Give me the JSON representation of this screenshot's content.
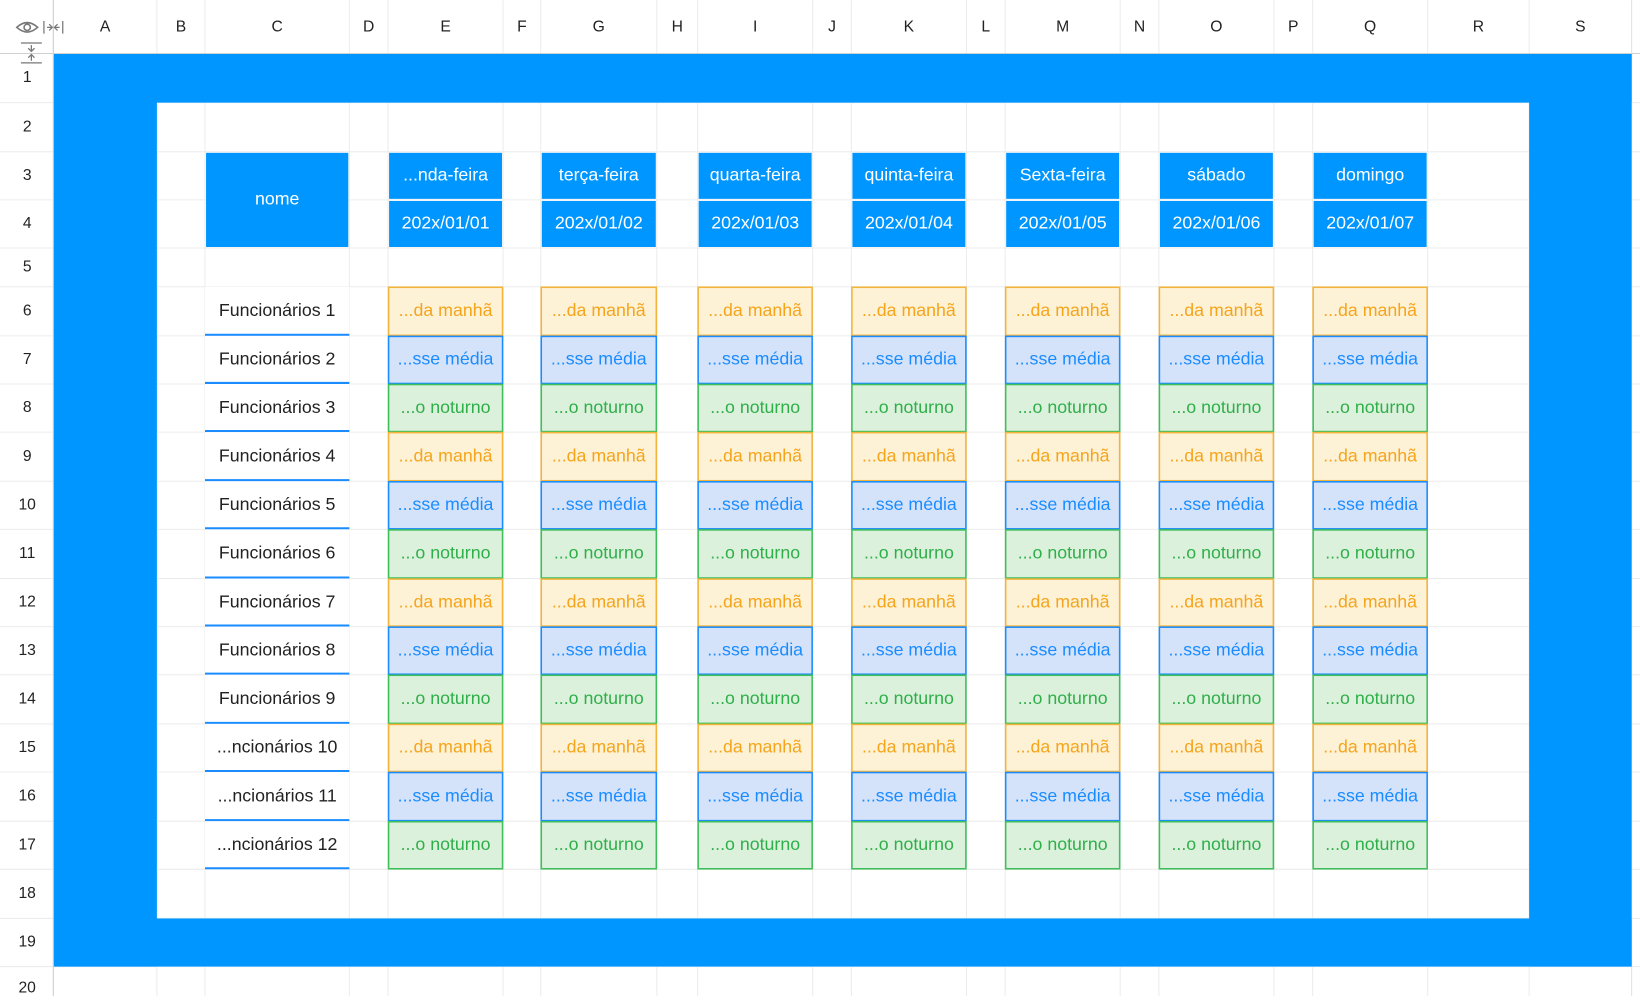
{
  "columns": [
    "A",
    "B",
    "C",
    "D",
    "E",
    "F",
    "G",
    "H",
    "I",
    "J",
    "K",
    "L",
    "M",
    "N",
    "O",
    "P",
    "Q",
    "R",
    "S"
  ],
  "rows": [
    1,
    2,
    3,
    4,
    5,
    6,
    7,
    8,
    9,
    10,
    11,
    12,
    13,
    14,
    15,
    16,
    17,
    18,
    19,
    20
  ],
  "schedule": {
    "name_header": "nome",
    "days": [
      {
        "day": "...nda-feira",
        "date": "202x/01/01"
      },
      {
        "day": "terça-feira",
        "date": "202x/01/02"
      },
      {
        "day": "quarta-feira",
        "date": "202x/01/03"
      },
      {
        "day": "quinta-feira",
        "date": "202x/01/04"
      },
      {
        "day": "Sexta-feira",
        "date": "202x/01/05"
      },
      {
        "day": "sábado",
        "date": "202x/01/06"
      },
      {
        "day": "domingo",
        "date": "202x/01/07"
      }
    ],
    "employees": [
      {
        "name": "Funcionários 1",
        "shifts": [
          "...da manhã",
          "...da manhã",
          "...da manhã",
          "...da manhã",
          "...da manhã",
          "...da manhã",
          "...da manhã"
        ]
      },
      {
        "name": "Funcionários 2",
        "shifts": [
          "...sse média",
          "...sse média",
          "...sse média",
          "...sse média",
          "...sse média",
          "...sse média",
          "...sse média"
        ]
      },
      {
        "name": "Funcionários 3",
        "shifts": [
          "...o noturno",
          "...o noturno",
          "...o noturno",
          "...o noturno",
          "...o noturno",
          "...o noturno",
          "...o noturno"
        ]
      },
      {
        "name": "Funcionários 4",
        "shifts": [
          "...da manhã",
          "...da manhã",
          "...da manhã",
          "...da manhã",
          "...da manhã",
          "...da manhã",
          "...da manhã"
        ]
      },
      {
        "name": "Funcionários 5",
        "shifts": [
          "...sse média",
          "...sse média",
          "...sse média",
          "...sse média",
          "...sse média",
          "...sse média",
          "...sse média"
        ]
      },
      {
        "name": "Funcionários 6",
        "shifts": [
          "...o noturno",
          "...o noturno",
          "...o noturno",
          "...o noturno",
          "...o noturno",
          "...o noturno",
          "...o noturno"
        ]
      },
      {
        "name": "Funcionários 7",
        "shifts": [
          "...da manhã",
          "...da manhã",
          "...da manhã",
          "...da manhã",
          "...da manhã",
          "...da manhã",
          "...da manhã"
        ]
      },
      {
        "name": "Funcionários 8",
        "shifts": [
          "...sse média",
          "...sse média",
          "...sse média",
          "...sse média",
          "...sse média",
          "...sse média",
          "...sse média"
        ]
      },
      {
        "name": "Funcionários 9",
        "shifts": [
          "...o noturno",
          "...o noturno",
          "...o noturno",
          "...o noturno",
          "...o noturno",
          "...o noturno",
          "...o noturno"
        ]
      },
      {
        "name": "...ncionários 10",
        "shifts": [
          "...da manhã",
          "...da manhã",
          "...da manhã",
          "...da manhã",
          "...da manhã",
          "...da manhã",
          "...da manhã"
        ]
      },
      {
        "name": "...ncionários 11",
        "shifts": [
          "...sse média",
          "...sse média",
          "...sse média",
          "...sse média",
          "...sse média",
          "...sse média",
          "...sse média"
        ]
      },
      {
        "name": "...ncionários 12",
        "shifts": [
          "...o noturno",
          "...o noturno",
          "...o noturno",
          "...o noturno",
          "...o noturno",
          "...o noturno",
          "...o noturno"
        ]
      }
    ]
  }
}
